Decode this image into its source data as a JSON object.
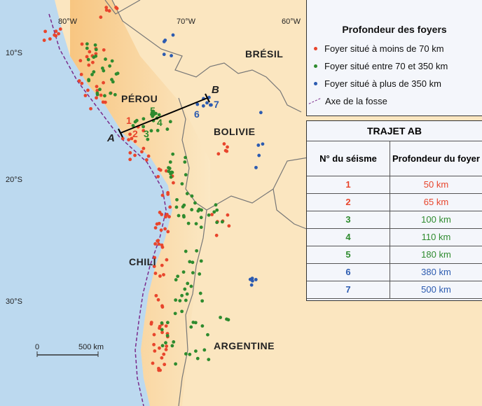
{
  "colors": {
    "shallow": "#e8452c",
    "intermediate": "#2e8b2e",
    "deep": "#2c5bb0",
    "trench": "#7a2a8a",
    "ocean": "#bcd9ef",
    "land": "#fbe6bd"
  },
  "coords": {
    "lon80": "80°W",
    "lon70": "70°W",
    "lon60": "60°W",
    "lat10": "10°S",
    "lat20": "20°S",
    "lat30": "30°S"
  },
  "countries": {
    "bresil": "BRÉSIL",
    "perou": "PÉROU",
    "bolivie": "BOLIVIE",
    "chili": "CHILI",
    "argentine": "ARGENTINE"
  },
  "section": {
    "a": "A",
    "b": "B",
    "quakes": [
      "1",
      "2",
      "3",
      "4",
      "5",
      "6",
      "7"
    ]
  },
  "scale": {
    "zero": "0",
    "label": "500 km"
  },
  "legend": {
    "title": "Profondeur des foyers",
    "items": [
      "Foyer situé à moins de 70 km",
      "Foyer situé entre 70 et 350 km",
      "Foyer situé à plus de 350 km",
      "Axe de la fosse"
    ]
  },
  "table": {
    "title": "TRAJET AB",
    "col1": "N° du séisme",
    "col2": "Profondeur du foyer",
    "rows": [
      {
        "n": "1",
        "d": "50 km",
        "c": "shallow"
      },
      {
        "n": "2",
        "d": "65 km",
        "c": "shallow"
      },
      {
        "n": "3",
        "d": "100 km",
        "c": "intermediate"
      },
      {
        "n": "4",
        "d": "110 km",
        "c": "intermediate"
      },
      {
        "n": "5",
        "d": "180 km",
        "c": "intermediate"
      },
      {
        "n": "6",
        "d": "380 km",
        "c": "deep"
      },
      {
        "n": "7",
        "d": "500 km",
        "c": "deep"
      }
    ]
  }
}
